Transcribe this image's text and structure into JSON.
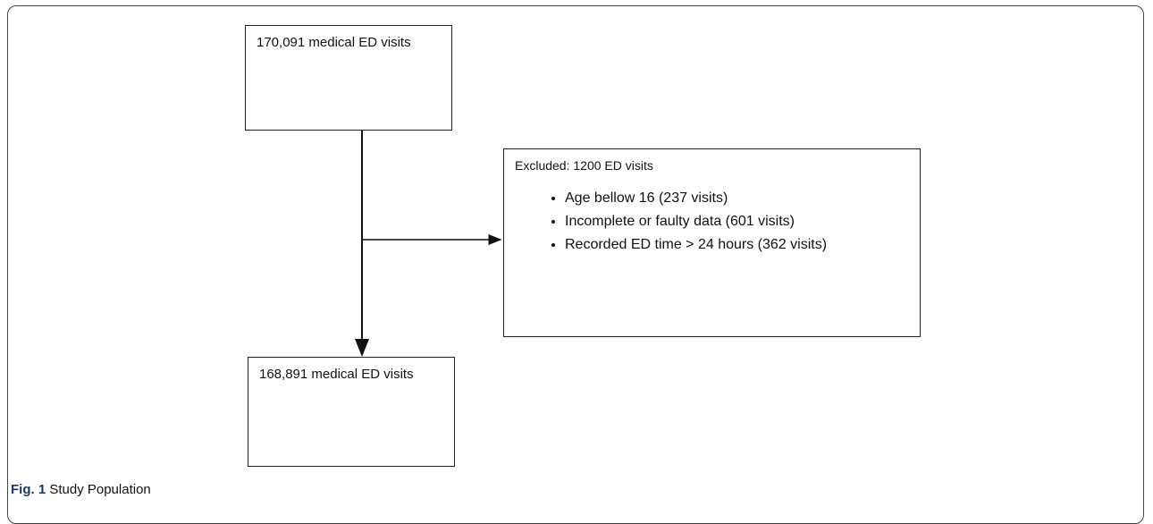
{
  "nodes": [
    {
      "label": "170,091 medical ED visits"
    },
    {
      "label": "168,891 medical ED visits"
    }
  ],
  "exclusion": {
    "title": "Excluded: 1200 ED visits",
    "items": [
      "Age bellow 16 (237 visits)",
      "Incomplete or faulty data (601 visits)",
      "Recorded ED time > 24 hours (362 visits)"
    ]
  },
  "caption": {
    "label": "Fig. 1",
    "title": "Study Population"
  }
}
